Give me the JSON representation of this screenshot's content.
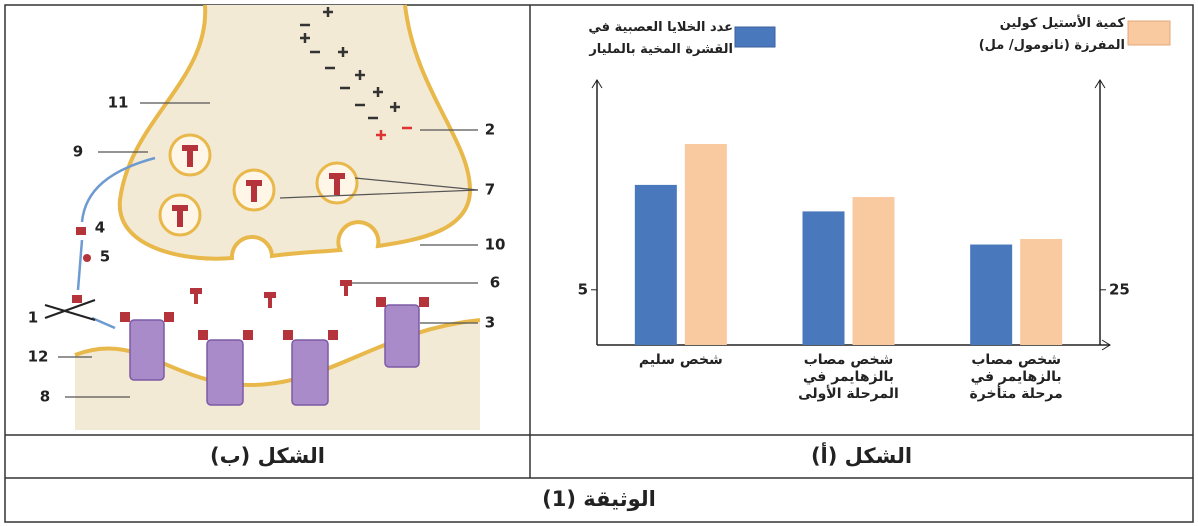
{
  "chart_data": {
    "type": "bar",
    "categories": [
      "شخص سليم",
      "شخص مصاب بالزهايمر في المرحلة الأولى",
      "شخص مصاب بالزهايمر في مرحلة متأخرة"
    ],
    "series": [
      {
        "name": "عدد الخلايا العصبية في القشرة المخية بالمليار",
        "color": "#4a78bd",
        "values": [
          14.5,
          12.1,
          9.1
        ]
      },
      {
        "name": "كمية الأستيل كولين المفرزة (نانومول/ مل)",
        "color": "#f9c9a0",
        "axis": "y2",
        "values": [
          91,
          67,
          48
        ]
      }
    ],
    "ylim": [
      0,
      24
    ],
    "yticks": [
      5
    ],
    "y2lim": [
      0,
      120
    ],
    "y2ticks": [
      25
    ]
  },
  "figure_a": {
    "caption": "الشكل (أ)"
  },
  "figure_b": {
    "caption": "الشكل (ب)",
    "labels": [
      "1",
      "2",
      "3",
      "4",
      "5",
      "6",
      "7",
      "8",
      "9",
      "10",
      "11",
      "12"
    ]
  },
  "document": {
    "title": "الوثيقة (1)"
  }
}
